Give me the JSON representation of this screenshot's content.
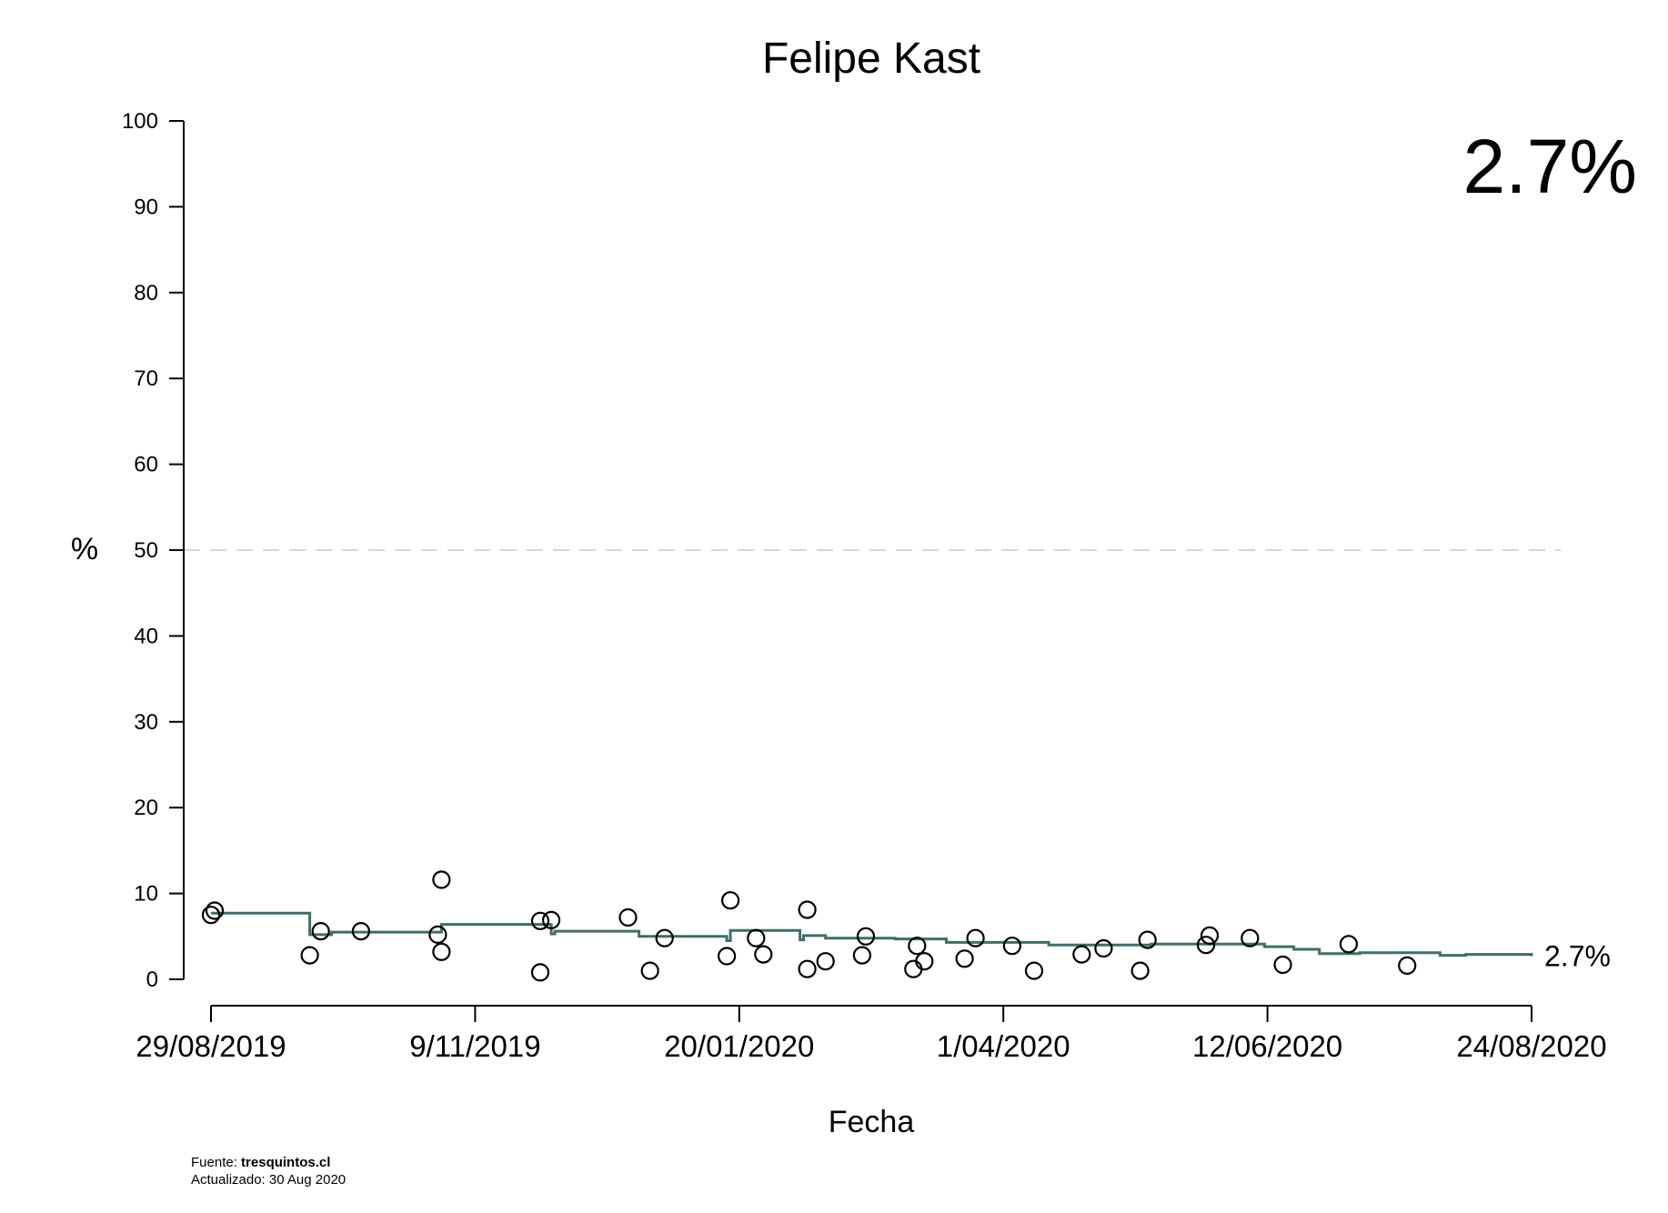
{
  "colors": {
    "line": "#3f6e68",
    "points": "#000000",
    "watermark": "#d9d9d9",
    "reference": "#d6d6d6"
  },
  "chart_data": {
    "type": "scatter",
    "title": "Felipe Kast",
    "xlabel": "Fecha",
    "ylabel": "%",
    "x_ticks": [
      "29/08/2019",
      "9/11/2019",
      "20/01/2020",
      "1/04/2020",
      "12/06/2020",
      "24/08/2020"
    ],
    "y_ticks": [
      "0",
      "10",
      "20",
      "30",
      "40",
      "50",
      "60",
      "70",
      "80",
      "90",
      "100"
    ],
    "xlim": [
      "2019-08-29",
      "2020-08-24"
    ],
    "ylim": [
      0,
      100
    ],
    "reference_line": 50,
    "watermark_value": "2.7%",
    "end_label": "2.7%",
    "grid": false,
    "legend": false,
    "series": [
      {
        "type": "step",
        "x": [
          "2019-08-29",
          "2019-09-25",
          "2019-10-01",
          "2019-10-31",
          "2019-11-30",
          "2019-12-01",
          "2019-12-24",
          "2020-01-17",
          "2020-01-18",
          "2020-02-06",
          "2020-02-07",
          "2020-02-13",
          "2020-03-03",
          "2020-03-17",
          "2020-04-14",
          "2020-05-12",
          "2020-06-12",
          "2020-06-20",
          "2020-06-27",
          "2020-07-08",
          "2020-07-30",
          "2020-08-06",
          "2020-08-24"
        ],
        "y": [
          7.7,
          5.2,
          5.5,
          6.4,
          5.3,
          5.6,
          5.0,
          4.5,
          5.7,
          4.6,
          5.1,
          4.8,
          4.7,
          4.3,
          4.0,
          4.1,
          3.8,
          3.5,
          3.0,
          3.1,
          2.8,
          2.9,
          2.7
        ]
      },
      {
        "type": "points",
        "x": [
          "2019-08-29",
          "2019-08-30",
          "2019-09-25",
          "2019-09-28",
          "2019-10-09",
          "2019-10-30",
          "2019-10-31",
          "2019-10-31",
          "2019-11-27",
          "2019-11-27",
          "2019-11-30",
          "2019-12-21",
          "2019-12-27",
          "2019-12-31",
          "2020-01-17",
          "2020-01-18",
          "2020-01-25",
          "2020-01-27",
          "2020-02-08",
          "2020-02-08",
          "2020-02-13",
          "2020-02-23",
          "2020-02-24",
          "2020-03-08",
          "2020-03-09",
          "2020-03-11",
          "2020-03-22",
          "2020-03-25",
          "2020-04-04",
          "2020-04-10",
          "2020-04-23",
          "2020-04-29",
          "2020-05-09",
          "2020-05-11",
          "2020-05-27",
          "2020-05-28",
          "2020-06-08",
          "2020-06-17",
          "2020-07-05",
          "2020-07-21"
        ],
        "y": [
          7.5,
          8.0,
          2.8,
          5.6,
          5.6,
          5.2,
          11.6,
          3.2,
          6.8,
          0.8,
          6.9,
          7.2,
          1.0,
          4.8,
          2.7,
          9.2,
          4.8,
          2.9,
          1.2,
          8.1,
          2.1,
          2.8,
          5.0,
          1.2,
          3.9,
          2.1,
          2.4,
          4.8,
          3.9,
          1.0,
          2.9,
          3.6,
          1.0,
          4.6,
          4.0,
          5.1,
          4.8,
          1.7,
          4.1,
          1.6
        ]
      }
    ]
  },
  "footer": {
    "source_label": "Fuente: ",
    "source_site": "tresquintos.cl",
    "updated": "Actualizado: 30 Aug 2020"
  }
}
